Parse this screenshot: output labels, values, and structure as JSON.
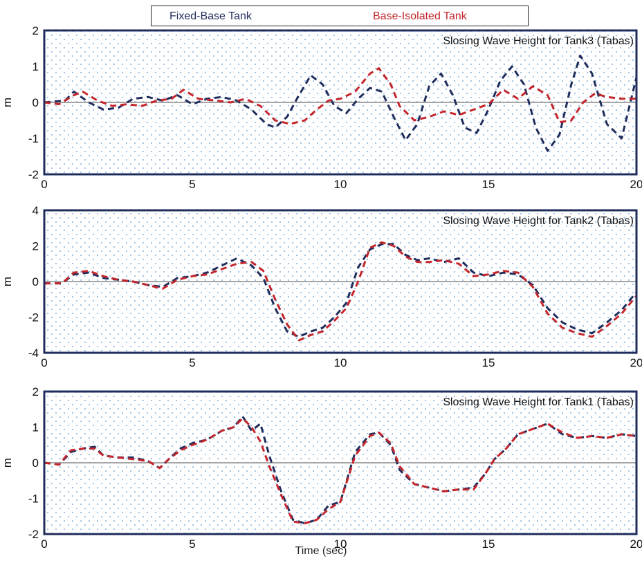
{
  "legend": {
    "fixed_label": "Fixed-Base Tank",
    "isolated_label": "Base-Isolated Tank"
  },
  "colors": {
    "fixed": "#1f2d5c",
    "isolated": "#c4262c",
    "frame": "#1f2d5c",
    "dots": "#5b9bd5",
    "zero_line": "#a6a6a6"
  },
  "xlabel": "Time (sec)",
  "chart_data": [
    {
      "type": "line",
      "title": "Slosing Wave Height for Tank3 (Tabas)",
      "ylabel": "m",
      "xlim": [
        0,
        20
      ],
      "ylim": [
        -2,
        2
      ],
      "xticks": [
        0,
        5,
        10,
        15,
        20
      ],
      "yticks": [
        -2,
        -1,
        0,
        1,
        2
      ],
      "grid": "dotted",
      "series": [
        {
          "name": "Fixed-Base Tank",
          "x": [
            0,
            0.7,
            1.0,
            1.5,
            2.0,
            2.5,
            3.0,
            3.5,
            4.0,
            4.5,
            5.0,
            5.5,
            6.0,
            6.5,
            7.0,
            7.5,
            7.8,
            8.2,
            8.6,
            9.0,
            9.4,
            9.8,
            10.2,
            10.6,
            11.0,
            11.4,
            11.8,
            12.2,
            12.6,
            13.0,
            13.4,
            13.8,
            14.2,
            14.6,
            15.0,
            15.4,
            15.8,
            16.2,
            16.6,
            17.0,
            17.4,
            17.8,
            18.1,
            18.5,
            19.0,
            19.5,
            20.0
          ],
          "values": [
            0,
            0.05,
            0.3,
            0.0,
            -0.2,
            -0.15,
            0.1,
            0.15,
            0.05,
            0.2,
            -0.05,
            0.1,
            0.15,
            0.05,
            -0.2,
            -0.6,
            -0.7,
            -0.4,
            0.2,
            0.75,
            0.5,
            -0.1,
            -0.3,
            0.1,
            0.4,
            0.3,
            -0.4,
            -1.05,
            -0.6,
            0.45,
            0.8,
            0.2,
            -0.7,
            -0.85,
            -0.2,
            0.6,
            1.0,
            0.5,
            -0.7,
            -1.35,
            -0.9,
            0.5,
            1.3,
            0.8,
            -0.6,
            -1.0,
            0.7
          ]
        },
        {
          "name": "Base-Isolated Tank",
          "x": [
            0,
            0.5,
            1.0,
            1.3,
            1.8,
            2.3,
            2.8,
            3.3,
            3.8,
            4.3,
            4.7,
            5.2,
            5.8,
            6.3,
            6.8,
            7.3,
            7.8,
            8.3,
            8.8,
            9.2,
            9.6,
            10.0,
            10.5,
            11.0,
            11.3,
            11.7,
            12.0,
            12.5,
            13.0,
            13.5,
            14.0,
            14.5,
            15.0,
            15.5,
            16.0,
            16.5,
            17.0,
            17.4,
            17.8,
            18.2,
            18.6,
            19.0,
            19.5,
            20.0
          ],
          "values": [
            0,
            -0.05,
            0.2,
            0.3,
            0.05,
            -0.1,
            -0.05,
            -0.1,
            0.05,
            0.1,
            0.35,
            0.1,
            0.05,
            0.0,
            0.1,
            -0.1,
            -0.5,
            -0.6,
            -0.5,
            -0.2,
            0.05,
            0.1,
            0.3,
            0.8,
            0.95,
            0.5,
            -0.1,
            -0.5,
            -0.4,
            -0.25,
            -0.35,
            -0.2,
            -0.05,
            0.35,
            0.1,
            0.45,
            0.2,
            -0.55,
            -0.5,
            0.0,
            0.25,
            0.15,
            0.1,
            0.1
          ]
        }
      ]
    },
    {
      "type": "line",
      "title": "Slosing Wave Height for Tank2 (Tabas)",
      "ylabel": "m",
      "xlim": [
        0,
        20
      ],
      "ylim": [
        -4,
        4
      ],
      "xticks": [
        0,
        5,
        10,
        15,
        20
      ],
      "yticks": [
        -4,
        -2,
        0,
        2,
        4
      ],
      "grid": "dotted",
      "series": [
        {
          "name": "Fixed-Base Tank",
          "x": [
            0,
            0.6,
            1.0,
            1.5,
            2.0,
            2.5,
            3.0,
            3.5,
            4.0,
            4.5,
            5.0,
            5.5,
            6.0,
            6.5,
            7.0,
            7.4,
            7.8,
            8.2,
            8.6,
            9.0,
            9.4,
            9.8,
            10.2,
            10.6,
            11.0,
            11.4,
            11.8,
            12.2,
            12.6,
            13.0,
            13.5,
            14.0,
            14.5,
            15.0,
            15.5,
            16.0,
            16.5,
            17.0,
            17.5,
            18.0,
            18.5,
            19.0,
            19.5,
            20.0
          ],
          "values": [
            -0.1,
            -0.1,
            0.4,
            0.5,
            0.2,
            0.1,
            0.0,
            -0.2,
            -0.3,
            0.2,
            0.3,
            0.5,
            0.9,
            1.3,
            0.9,
            0.2,
            -1.5,
            -2.8,
            -3.1,
            -2.8,
            -2.6,
            -2.0,
            -1.2,
            0.8,
            1.8,
            2.1,
            2.1,
            1.5,
            1.2,
            1.3,
            1.1,
            1.3,
            0.5,
            0.3,
            0.5,
            0.4,
            -0.2,
            -1.5,
            -2.3,
            -2.7,
            -2.9,
            -2.3,
            -1.6,
            -0.6
          ]
        },
        {
          "name": "Base-Isolated Tank",
          "x": [
            0,
            0.6,
            1.0,
            1.5,
            2.0,
            2.5,
            3.0,
            3.5,
            4.0,
            4.5,
            5.0,
            5.5,
            6.0,
            6.5,
            7.0,
            7.4,
            7.8,
            8.2,
            8.6,
            9.0,
            9.4,
            9.8,
            10.2,
            10.6,
            11.0,
            11.4,
            11.8,
            12.2,
            12.6,
            13.0,
            13.5,
            14.0,
            14.5,
            15.0,
            15.5,
            16.0,
            16.5,
            17.0,
            17.5,
            18.0,
            18.5,
            19.0,
            19.5,
            20.0
          ],
          "values": [
            -0.1,
            -0.1,
            0.5,
            0.6,
            0.3,
            0.1,
            0.0,
            -0.2,
            -0.4,
            0.1,
            0.3,
            0.4,
            0.7,
            1.0,
            1.1,
            0.6,
            -1.0,
            -2.4,
            -3.3,
            -3.0,
            -2.8,
            -2.2,
            -1.5,
            0.0,
            1.9,
            2.2,
            2.0,
            1.4,
            1.1,
            1.1,
            1.2,
            1.0,
            0.3,
            0.4,
            0.6,
            0.5,
            -0.3,
            -1.8,
            -2.6,
            -2.9,
            -3.1,
            -2.5,
            -1.8,
            -0.8
          ]
        }
      ]
    },
    {
      "type": "line",
      "title": "Slosing Wave Height for Tank1 (Tabas)",
      "ylabel": "m",
      "xlim": [
        0,
        20
      ],
      "ylim": [
        -2,
        2
      ],
      "xticks": [
        0,
        5,
        10,
        15,
        20
      ],
      "yticks": [
        -2,
        -1,
        0,
        1,
        2
      ],
      "grid": "dotted",
      "series": [
        {
          "name": "Fixed-Base Tank",
          "x": [
            0,
            0.5,
            0.9,
            1.3,
            1.7,
            2.0,
            2.5,
            3.0,
            3.5,
            3.9,
            4.2,
            4.6,
            5.0,
            5.5,
            6.0,
            6.4,
            6.7,
            7.0,
            7.3,
            7.6,
            8.0,
            8.4,
            8.8,
            9.2,
            9.6,
            10.0,
            10.5,
            11.0,
            11.3,
            11.7,
            12.0,
            12.5,
            13.0,
            13.5,
            14.0,
            14.5,
            14.9,
            15.2,
            15.6,
            16.0,
            16.5,
            17.0,
            17.5,
            18.0,
            18.5,
            19.0,
            19.5,
            20.0
          ],
          "values": [
            0,
            -0.05,
            0.3,
            0.4,
            0.45,
            0.2,
            0.15,
            0.15,
            0.05,
            -0.15,
            0.1,
            0.4,
            0.55,
            0.65,
            0.9,
            1.0,
            1.3,
            0.9,
            1.1,
            0.2,
            -0.8,
            -1.6,
            -1.7,
            -1.6,
            -1.2,
            -1.1,
            0.3,
            0.8,
            0.85,
            0.5,
            -0.2,
            -0.6,
            -0.7,
            -0.8,
            -0.75,
            -0.7,
            -0.3,
            0.1,
            0.4,
            0.8,
            0.95,
            1.1,
            0.8,
            0.7,
            0.75,
            0.7,
            0.8,
            0.75
          ]
        },
        {
          "name": "Base-Isolated Tank",
          "x": [
            0,
            0.5,
            0.9,
            1.3,
            1.7,
            2.0,
            2.5,
            3.0,
            3.5,
            3.9,
            4.2,
            4.6,
            5.0,
            5.5,
            6.0,
            6.4,
            6.7,
            7.0,
            7.3,
            7.6,
            8.0,
            8.4,
            8.8,
            9.2,
            9.6,
            10.0,
            10.5,
            11.0,
            11.3,
            11.7,
            12.0,
            12.5,
            13.0,
            13.5,
            14.0,
            14.5,
            14.9,
            15.2,
            15.6,
            16.0,
            16.5,
            17.0,
            17.5,
            18.0,
            18.5,
            19.0,
            19.5,
            20.0
          ],
          "values": [
            0,
            -0.05,
            0.35,
            0.4,
            0.4,
            0.2,
            0.15,
            0.1,
            0.05,
            -0.15,
            0.1,
            0.35,
            0.5,
            0.65,
            0.9,
            1.0,
            1.25,
            1.0,
            0.6,
            -0.1,
            -0.9,
            -1.65,
            -1.7,
            -1.6,
            -1.3,
            -1.1,
            0.2,
            0.75,
            0.85,
            0.55,
            -0.1,
            -0.6,
            -0.7,
            -0.8,
            -0.75,
            -0.75,
            -0.3,
            0.1,
            0.4,
            0.8,
            0.95,
            1.1,
            0.85,
            0.7,
            0.75,
            0.7,
            0.8,
            0.75
          ]
        }
      ]
    }
  ]
}
